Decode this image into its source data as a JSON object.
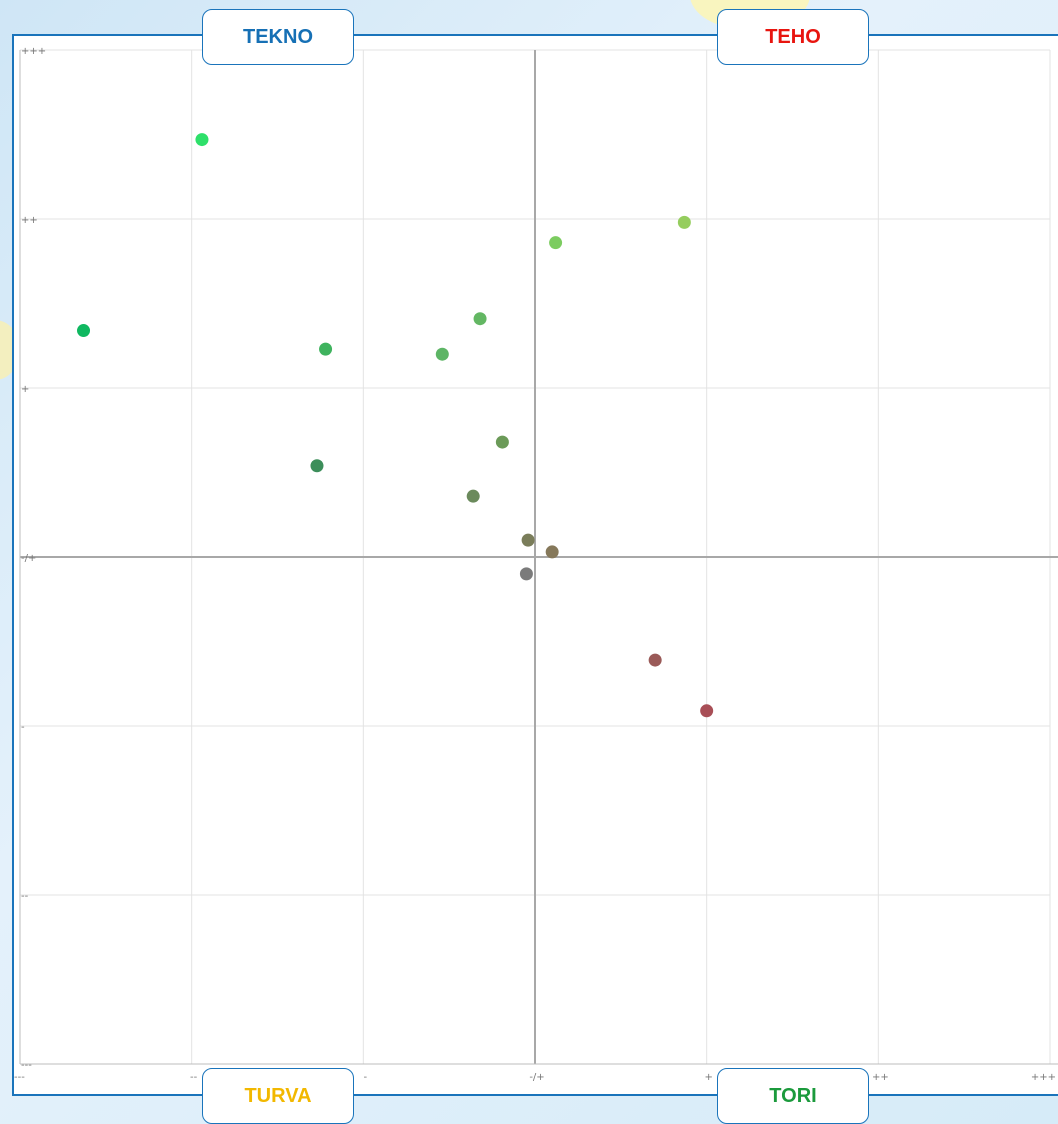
{
  "quadrants": {
    "top_left": {
      "label": "TEKNO",
      "color": "#1670b5"
    },
    "top_right": {
      "label": "TEHO",
      "color": "#e8150f"
    },
    "bottom_left": {
      "label": "TURVA",
      "color": "#f2b800"
    },
    "bottom_right": {
      "label": "TORI",
      "color": "#1b9a3c"
    }
  },
  "chart_data": {
    "type": "scatter",
    "title": "",
    "xlabel": "",
    "ylabel": "",
    "xlim": [
      -3,
      3
    ],
    "ylim": [
      -3,
      3
    ],
    "grid": true,
    "x_ticks": [
      {
        "value": -3,
        "label": "---"
      },
      {
        "value": -2,
        "label": "--"
      },
      {
        "value": -1,
        "label": "-"
      },
      {
        "value": 0,
        "label": "-/+"
      },
      {
        "value": 1,
        "label": "+"
      },
      {
        "value": 2,
        "label": "++"
      },
      {
        "value": 3,
        "label": "+++"
      }
    ],
    "y_ticks": [
      {
        "value": 3,
        "label": "+++"
      },
      {
        "value": 2,
        "label": "++"
      },
      {
        "value": 1,
        "label": "+"
      },
      {
        "value": 0,
        "label": "-/+"
      },
      {
        "value": -1,
        "label": "-"
      },
      {
        "value": -2,
        "label": "--"
      },
      {
        "value": -3,
        "label": "---"
      }
    ],
    "points": [
      {
        "x": -1.94,
        "y": 2.47,
        "color": "#2ee06a"
      },
      {
        "x": -2.63,
        "y": 1.34,
        "color": "#0fb860"
      },
      {
        "x": -1.22,
        "y": 1.23,
        "color": "#3fb35e"
      },
      {
        "x": -1.27,
        "y": 0.54,
        "color": "#3c8e5a"
      },
      {
        "x": -0.54,
        "y": 1.2,
        "color": "#5db565"
      },
      {
        "x": -0.32,
        "y": 1.41,
        "color": "#63b763"
      },
      {
        "x": 0.12,
        "y": 1.86,
        "color": "#7ccc60"
      },
      {
        "x": 0.87,
        "y": 1.98,
        "color": "#95cd5e"
      },
      {
        "x": -0.19,
        "y": 0.68,
        "color": "#6b9a58"
      },
      {
        "x": -0.36,
        "y": 0.36,
        "color": "#6b8a5c"
      },
      {
        "x": -0.04,
        "y": 0.1,
        "color": "#7a7d5a"
      },
      {
        "x": 0.1,
        "y": 0.03,
        "color": "#85785a"
      },
      {
        "x": -0.05,
        "y": -0.1,
        "color": "#7b7b7b"
      },
      {
        "x": 0.7,
        "y": -0.61,
        "color": "#9a5a58"
      },
      {
        "x": 1.0,
        "y": -0.91,
        "color": "#a84e56"
      }
    ]
  }
}
